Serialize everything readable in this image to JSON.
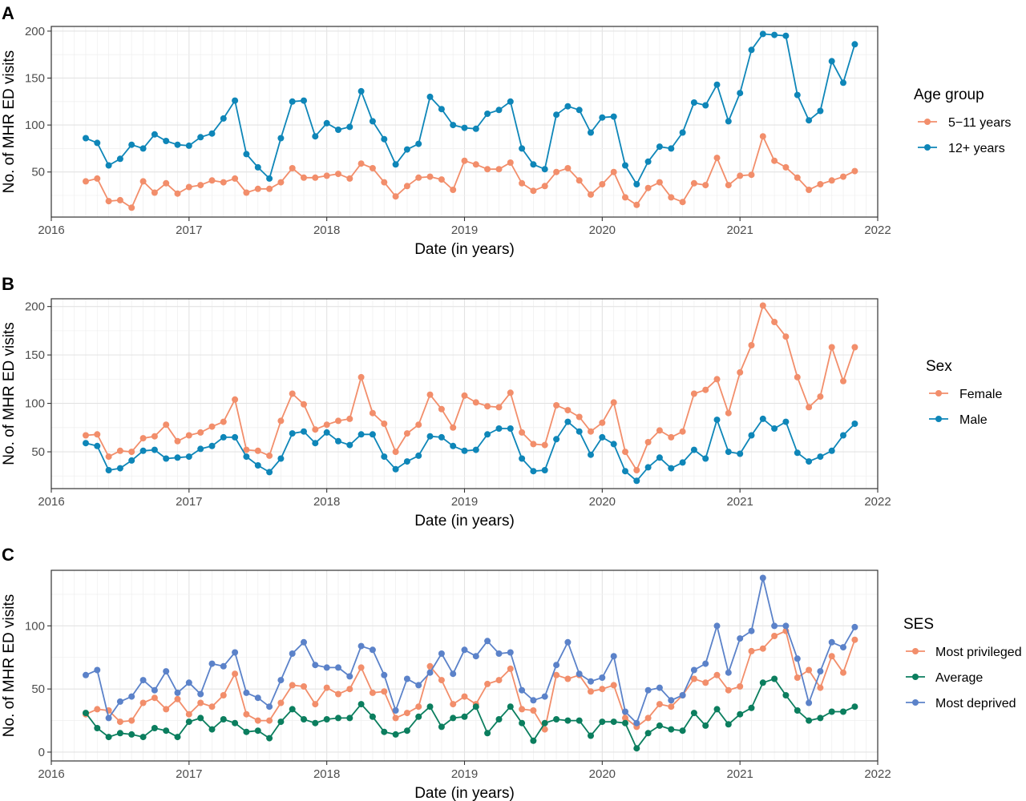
{
  "chart_data": [
    {
      "type": "line",
      "panel": "A",
      "xlabel": "Date (in years)",
      "ylabel": "No. of MHR ED visits",
      "x_ticks": [
        "2016",
        "2017",
        "2018",
        "2019",
        "2020",
        "2021",
        "2022"
      ],
      "xlim": [
        "2016-01-01",
        "2022-01-01"
      ],
      "y_ticks": [
        50,
        100,
        150,
        200
      ],
      "ylim": [
        2,
        205
      ],
      "grid": true,
      "legend_title": "Age group",
      "legend_position": "right",
      "x_start": "2016-04",
      "series": [
        {
          "name": "5−11 years",
          "color": "#F28E6B",
          "values": [
            40,
            43,
            19,
            20,
            12,
            40,
            28,
            38,
            27,
            34,
            36,
            41,
            39,
            43,
            28,
            32,
            32,
            39,
            54,
            44,
            44,
            46,
            48,
            43,
            59,
            54,
            39,
            24,
            35,
            44,
            45,
            42,
            31,
            62,
            58,
            53,
            53,
            60,
            38,
            30,
            35,
            50,
            54,
            41,
            26,
            37,
            50,
            23,
            15,
            33,
            39,
            23,
            18,
            38,
            36,
            65,
            36,
            46,
            47,
            88,
            62,
            55,
            44,
            31,
            37,
            41,
            45,
            51
          ]
        },
        {
          "name": "12+ years",
          "color": "#0E86B8",
          "values": [
            86,
            81,
            57,
            64,
            79,
            75,
            90,
            83,
            79,
            78,
            87,
            91,
            107,
            126,
            69,
            55,
            43,
            86,
            125,
            126,
            88,
            102,
            95,
            98,
            136,
            104,
            85,
            58,
            74,
            80,
            130,
            117,
            100,
            97,
            96,
            112,
            116,
            125,
            75,
            58,
            53,
            111,
            120,
            116,
            92,
            108,
            109,
            57,
            37,
            61,
            77,
            75,
            92,
            124,
            121,
            143,
            104,
            134,
            180,
            197,
            196,
            195,
            132,
            105,
            115,
            168,
            145,
            186
          ]
        }
      ]
    },
    {
      "type": "line",
      "panel": "B",
      "xlabel": "Date (in years)",
      "ylabel": "No. of MHR ED visits",
      "x_ticks": [
        "2016",
        "2017",
        "2018",
        "2019",
        "2020",
        "2021",
        "2022"
      ],
      "xlim": [
        "2016-01-01",
        "2022-01-01"
      ],
      "y_ticks": [
        50,
        100,
        150,
        200
      ],
      "ylim": [
        12,
        208
      ],
      "grid": true,
      "legend_title": "Sex",
      "legend_position": "right",
      "x_start": "2016-04",
      "series": [
        {
          "name": "Female",
          "color": "#F28E6B",
          "values": [
            67,
            68,
            45,
            51,
            50,
            64,
            66,
            78,
            61,
            67,
            70,
            76,
            81,
            104,
            52,
            51,
            46,
            82,
            110,
            99,
            73,
            78,
            82,
            84,
            127,
            90,
            79,
            50,
            69,
            78,
            109,
            94,
            75,
            108,
            101,
            97,
            96,
            111,
            70,
            58,
            57,
            98,
            93,
            86,
            71,
            80,
            101,
            50,
            31,
            60,
            72,
            65,
            71,
            110,
            114,
            125,
            90,
            132,
            160,
            201,
            184,
            169,
            127,
            96,
            107,
            158,
            123,
            158
          ]
        },
        {
          "name": "Male",
          "color": "#0E86B8",
          "values": [
            59,
            56,
            31,
            33,
            41,
            51,
            52,
            43,
            44,
            45,
            53,
            56,
            65,
            65,
            45,
            36,
            29,
            43,
            69,
            71,
            59,
            70,
            61,
            57,
            68,
            68,
            45,
            32,
            40,
            46,
            66,
            65,
            56,
            51,
            52,
            68,
            74,
            74,
            43,
            30,
            31,
            63,
            81,
            71,
            47,
            65,
            58,
            30,
            20,
            34,
            44,
            33,
            39,
            52,
            43,
            83,
            50,
            48,
            67,
            84,
            74,
            81,
            49,
            40,
            45,
            51,
            67,
            79
          ]
        }
      ]
    },
    {
      "type": "line",
      "panel": "C",
      "xlabel": "Date (in years)",
      "ylabel": "No. of MHR ED visits",
      "x_ticks": [
        "2016",
        "2017",
        "2018",
        "2019",
        "2020",
        "2021",
        "2022"
      ],
      "xlim": [
        "2016-01-01",
        "2022-01-01"
      ],
      "y_ticks": [
        0,
        50,
        100
      ],
      "ylim": [
        -7,
        144
      ],
      "grid": true,
      "legend_title": "SES",
      "legend_position": "right",
      "x_start": "2016-04",
      "series": [
        {
          "name": "Most privileged",
          "color": "#F28E6B",
          "values": [
            30,
            34,
            33,
            24,
            25,
            39,
            43,
            34,
            42,
            30,
            39,
            36,
            45,
            62,
            30,
            25,
            25,
            39,
            53,
            52,
            38,
            51,
            46,
            50,
            67,
            47,
            48,
            27,
            31,
            36,
            68,
            57,
            38,
            44,
            38,
            54,
            57,
            66,
            34,
            33,
            18,
            61,
            58,
            61,
            48,
            50,
            53,
            27,
            20,
            27,
            38,
            36,
            45,
            58,
            55,
            61,
            49,
            52,
            80,
            82,
            92,
            96,
            59,
            65,
            51,
            76,
            63,
            89
          ]
        },
        {
          "name": "Average",
          "color": "#0B7E5E",
          "values": [
            31,
            19,
            12,
            15,
            14,
            12,
            19,
            17,
            12,
            24,
            27,
            18,
            26,
            23,
            16,
            17,
            11,
            24,
            34,
            26,
            23,
            26,
            27,
            27,
            38,
            28,
            16,
            14,
            17,
            28,
            36,
            20,
            27,
            28,
            36,
            15,
            26,
            36,
            23,
            9,
            23,
            26,
            25,
            25,
            13,
            24,
            24,
            23,
            3,
            15,
            21,
            18,
            17,
            31,
            21,
            34,
            22,
            30,
            35,
            55,
            58,
            45,
            33,
            25,
            27,
            32,
            32,
            36
          ]
        },
        {
          "name": "Most deprived",
          "color": "#5B82C9",
          "values": [
            61,
            65,
            27,
            40,
            44,
            57,
            49,
            64,
            47,
            55,
            46,
            70,
            68,
            79,
            47,
            43,
            36,
            57,
            78,
            87,
            69,
            67,
            67,
            60,
            84,
            81,
            61,
            33,
            58,
            53,
            63,
            78,
            62,
            81,
            76,
            88,
            78,
            79,
            49,
            41,
            44,
            69,
            87,
            62,
            56,
            59,
            76,
            32,
            23,
            49,
            51,
            41,
            45,
            65,
            70,
            100,
            63,
            90,
            96,
            138,
            100,
            100,
            74,
            39,
            64,
            87,
            83,
            99
          ]
        }
      ]
    }
  ]
}
